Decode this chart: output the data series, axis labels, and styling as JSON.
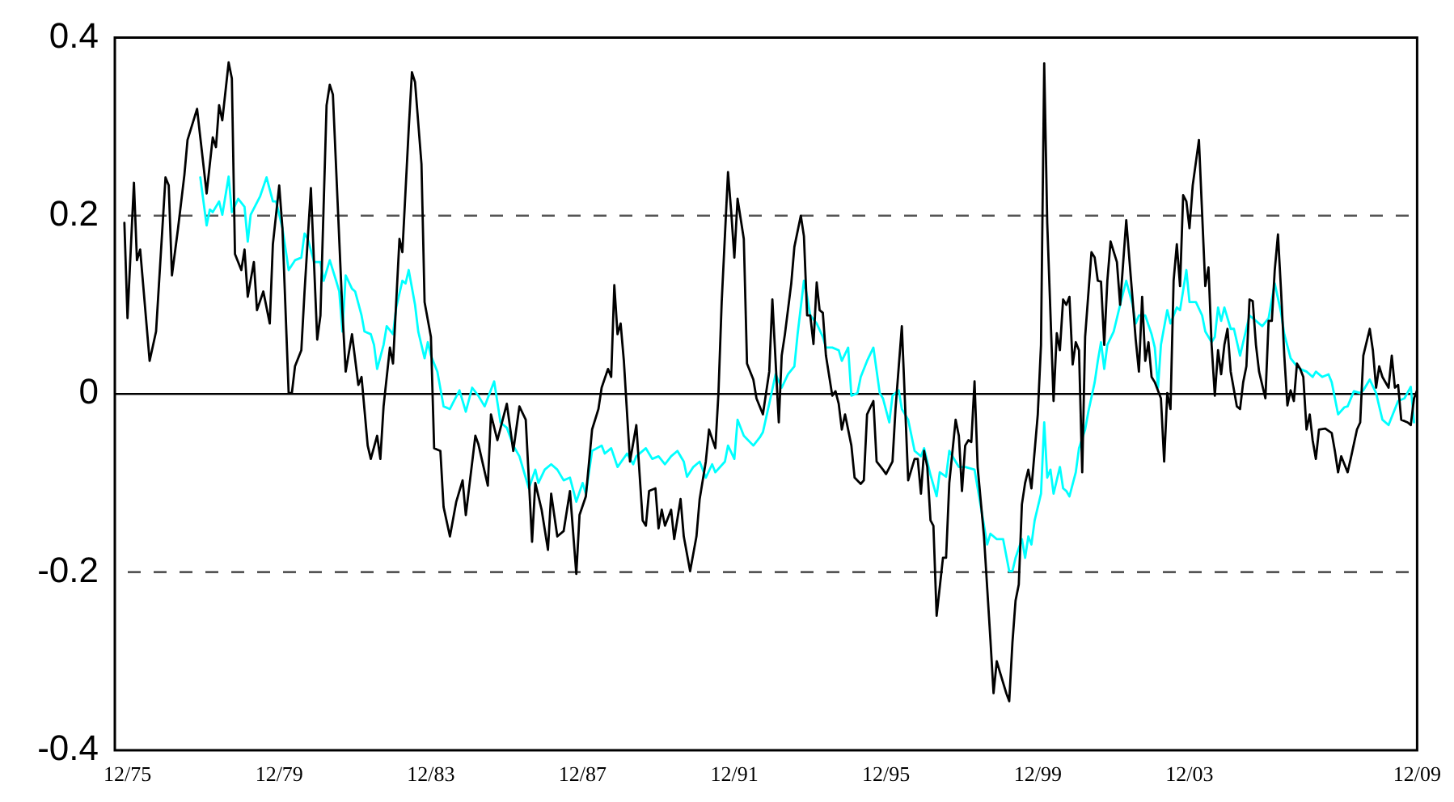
{
  "chart_data": {
    "type": "line",
    "xlim": [
      "1975-08",
      "2009-12"
    ],
    "xticks": [
      {
        "value": "1975-12",
        "label": "12/75"
      },
      {
        "value": "1979-12",
        "label": "12/79"
      },
      {
        "value": "1983-12",
        "label": "12/83"
      },
      {
        "value": "1987-12",
        "label": "12/87"
      },
      {
        "value": "1991-12",
        "label": "12/91"
      },
      {
        "value": "1995-12",
        "label": "12/95"
      },
      {
        "value": "1999-12",
        "label": "12/99"
      },
      {
        "value": "2003-12",
        "label": "12/03"
      },
      {
        "value": "2009-12",
        "label": "12/09"
      }
    ],
    "ylim": [
      -0.4,
      0.4
    ],
    "yticks": [
      -0.4,
      -0.2,
      0,
      0.2,
      0.4
    ],
    "ref_lines": [
      {
        "axis": "y",
        "value": 0.2,
        "color": "#555555",
        "line_style": "dashed"
      },
      {
        "axis": "y",
        "value": -0.2,
        "color": "#555555",
        "line_style": "dashed"
      },
      {
        "axis": "y",
        "value": 0,
        "color": "#000000",
        "line_style": "solid"
      }
    ],
    "series": [
      {
        "color": "#000000",
        "x": [
          "1975-11",
          "1975-12",
          "1976-02",
          "1976-03",
          "1976-04",
          "1976-07",
          "1976-09",
          "1976-12",
          "1977-01",
          "1977-02",
          "1977-04",
          "1977-06",
          "1977-07",
          "1977-10",
          "1978-01",
          "1978-03",
          "1978-04",
          "1978-05",
          "1978-06",
          "1978-08",
          "1978-09",
          "1978-10",
          "1978-12",
          "1979-01",
          "1979-02",
          "1979-04",
          "1979-05",
          "1979-07",
          "1979-09",
          "1979-10",
          "1979-12",
          "1980-01",
          "1980-03",
          "1980-04",
          "1980-05",
          "1980-07",
          "1980-08",
          "1980-10",
          "1980-12",
          "1981-01",
          "1981-03",
          "1981-04",
          "1981-05",
          "1981-08",
          "1981-09",
          "1981-11",
          "1982-01",
          "1982-02",
          "1982-04",
          "1982-05",
          "1982-07",
          "1982-08",
          "1982-09",
          "1982-11",
          "1982-12",
          "1983-02",
          "1983-03",
          "1983-05",
          "1983-06",
          "1983-07",
          "1983-09",
          "1983-10",
          "1983-12",
          "1984-01",
          "1984-03",
          "1984-04",
          "1984-06",
          "1984-08",
          "1984-10",
          "1984-11",
          "1985-02",
          "1985-03",
          "1985-06",
          "1985-07",
          "1985-09",
          "1985-12",
          "1986-02",
          "1986-04",
          "1986-06",
          "1986-08",
          "1986-09",
          "1986-11",
          "1987-01",
          "1987-02",
          "1987-04",
          "1987-06",
          "1987-08",
          "1987-10",
          "1987-11",
          "1988-01",
          "1988-03",
          "1988-05",
          "1988-06",
          "1988-08",
          "1988-09",
          "1988-10",
          "1988-11",
          "1988-12",
          "1989-01",
          "1989-03",
          "1989-05",
          "1989-07",
          "1989-08",
          "1989-09",
          "1989-11",
          "1989-12",
          "1990-01",
          "1990-02",
          "1990-04",
          "1990-05",
          "1990-07",
          "1990-08",
          "1990-10",
          "1990-12",
          "1991-01",
          "1991-03",
          "1991-04",
          "1991-06",
          "1991-07",
          "1991-08",
          "1991-10",
          "1991-11",
          "1991-12",
          "1992-01",
          "1992-03",
          "1992-04",
          "1992-06",
          "1992-07",
          "1992-09",
          "1992-11",
          "1992-12",
          "1993-02",
          "1993-03",
          "1993-04",
          "1993-06",
          "1993-07",
          "1993-09",
          "1993-10",
          "1993-11",
          "1993-12",
          "1994-01",
          "1994-02",
          "1994-03",
          "1994-04",
          "1994-05",
          "1994-07",
          "1994-08",
          "1994-09",
          "1994-10",
          "1994-11",
          "1995-01",
          "1995-02",
          "1995-04",
          "1995-05",
          "1995-06",
          "1995-08",
          "1995-09",
          "1995-11",
          "1995-12",
          "1996-02",
          "1996-03",
          "1996-05",
          "1996-07",
          "1996-09",
          "1996-10",
          "1996-11",
          "1996-12",
          "1997-01",
          "1997-02",
          "1997-03",
          "1997-04",
          "1997-06",
          "1997-07",
          "1997-08",
          "1997-10",
          "1997-11",
          "1997-12",
          "1998-01",
          "1998-02",
          "1998-03",
          "1998-04",
          "1998-05",
          "1998-07",
          "1998-09",
          "1998-10",
          "1998-11",
          "1998-12",
          "1999-02",
          "1999-03",
          "1999-04",
          "1999-05",
          "1999-06",
          "1999-07",
          "1999-08",
          "1999-09",
          "1999-10",
          "1999-12",
          "2000-01",
          "2000-02",
          "2000-03",
          "2000-05",
          "2000-06",
          "2000-07",
          "2000-08",
          "2000-09",
          "2000-10",
          "2000-11",
          "2000-12",
          "2001-01",
          "2001-02",
          "2001-03",
          "2001-05",
          "2001-06",
          "2001-07",
          "2001-08",
          "2001-09",
          "2001-10",
          "2001-11",
          "2002-01",
          "2002-02",
          "2002-03",
          "2002-04",
          "2002-06",
          "2002-07",
          "2002-08",
          "2002-09",
          "2002-10",
          "2002-11",
          "2002-12",
          "2003-01",
          "2003-03",
          "2003-04",
          "2003-05",
          "2003-06",
          "2003-07",
          "2003-08",
          "2003-09",
          "2003-10",
          "2003-11",
          "2003-12",
          "2004-01",
          "2004-03",
          "2004-05",
          "2004-06",
          "2004-07",
          "2004-08",
          "2004-09",
          "2004-10",
          "2004-11",
          "2004-12",
          "2005-01",
          "2005-03",
          "2005-04",
          "2005-05",
          "2005-06",
          "2005-07",
          "2005-08",
          "2005-09",
          "2005-10",
          "2005-12",
          "2006-01",
          "2006-02",
          "2006-03",
          "2006-04",
          "2006-05",
          "2006-06",
          "2006-07",
          "2006-08",
          "2006-09",
          "2006-10",
          "2006-11",
          "2006-12",
          "2007-01",
          "2007-02",
          "2007-03",
          "2007-04",
          "2007-05",
          "2007-07",
          "2007-09",
          "2007-10",
          "2007-11",
          "2007-12",
          "2008-02",
          "2008-03",
          "2008-05",
          "2008-06",
          "2008-07",
          "2008-09",
          "2008-10",
          "2008-11",
          "2008-12",
          "2009-01",
          "2009-03",
          "2009-04",
          "2009-05",
          "2009-06",
          "2009-07",
          "2009-09",
          "2009-10",
          "2009-11",
          "2009-12"
        ],
        "values": [
          0.192,
          0.085,
          0.237,
          0.15,
          0.162,
          0.037,
          0.07,
          0.243,
          0.234,
          0.133,
          0.186,
          0.246,
          0.285,
          0.32,
          0.225,
          0.288,
          0.277,
          0.324,
          0.307,
          0.372,
          0.354,
          0.157,
          0.139,
          0.162,
          0.109,
          0.148,
          0.094,
          0.115,
          0.079,
          0.168,
          0.234,
          0.186,
          0.001,
          0.001,
          0.031,
          0.049,
          0.115,
          0.231,
          0.061,
          0.088,
          0.324,
          0.347,
          0.336,
          0.091,
          0.025,
          0.067,
          0.01,
          0.019,
          -0.058,
          -0.073,
          -0.047,
          -0.073,
          -0.014,
          0.052,
          0.034,
          0.174,
          0.159,
          0.297,
          0.361,
          0.35,
          0.258,
          0.103,
          0.064,
          -0.061,
          -0.064,
          -0.127,
          -0.16,
          -0.121,
          -0.097,
          -0.136,
          -0.047,
          -0.056,
          -0.103,
          -0.023,
          -0.052,
          -0.011,
          -0.064,
          -0.014,
          -0.029,
          -0.166,
          -0.1,
          -0.13,
          -0.175,
          -0.112,
          -0.16,
          -0.154,
          -0.109,
          -0.202,
          -0.136,
          -0.115,
          -0.04,
          -0.017,
          0.007,
          0.028,
          0.019,
          0.122,
          0.067,
          0.079,
          0.037,
          -0.076,
          -0.035,
          -0.142,
          -0.148,
          -0.109,
          -0.106,
          -0.151,
          -0.13,
          -0.148,
          -0.13,
          -0.163,
          -0.118,
          -0.16,
          -0.199,
          -0.16,
          -0.118,
          -0.076,
          -0.04,
          -0.061,
          0.001,
          0.103,
          0.249,
          0.204,
          0.153,
          0.219,
          0.174,
          0.034,
          0.016,
          -0.005,
          -0.023,
          0.025,
          0.106,
          -0.032,
          0.043,
          0.067,
          0.124,
          0.165,
          0.2,
          0.177,
          0.088,
          0.088,
          0.056,
          0.125,
          0.094,
          0.091,
          0.043,
          -0.002,
          0.003,
          -0.011,
          -0.04,
          -0.023,
          -0.058,
          -0.094,
          -0.101,
          -0.097,
          -0.023,
          -0.008,
          -0.076,
          -0.085,
          -0.09,
          -0.076,
          -0.017,
          0.076,
          -0.097,
          -0.073,
          -0.073,
          -0.112,
          -0.064,
          -0.082,
          -0.142,
          -0.148,
          -0.249,
          -0.184,
          -0.184,
          -0.1,
          -0.029,
          -0.047,
          -0.109,
          -0.058,
          -0.052,
          -0.054,
          0.014,
          -0.082,
          -0.16,
          -0.276,
          -0.336,
          -0.3,
          -0.312,
          -0.336,
          -0.345,
          -0.279,
          -0.232,
          -0.214,
          -0.124,
          -0.1,
          -0.085,
          -0.106,
          -0.023,
          0.055,
          0.371,
          0.192,
          -0.008,
          0.068,
          0.049,
          0.106,
          0.1,
          0.109,
          0.033,
          0.058,
          0.049,
          -0.088,
          0.064,
          0.159,
          0.153,
          0.127,
          0.126,
          0.055,
          0.127,
          0.171,
          0.148,
          0.1,
          0.145,
          0.195,
          0.106,
          0.061,
          0.025,
          0.109,
          0.037,
          0.058,
          0.019,
          0.013,
          -0.005,
          -0.076,
          0.001,
          -0.017,
          0.127,
          0.168,
          0.121,
          0.223,
          0.216,
          0.186,
          0.234,
          0.285,
          0.121,
          0.142,
          0.055,
          -0.002,
          0.049,
          0.022,
          0.055,
          0.073,
          0.025,
          -0.014,
          -0.017,
          0.013,
          0.031,
          0.106,
          0.104,
          0.055,
          0.025,
          -0.005,
          0.082,
          0.082,
          0.139,
          0.179,
          0.115,
          0.043,
          -0.013,
          0.004,
          -0.008,
          0.034,
          0.028,
          0.019,
          -0.04,
          -0.023,
          -0.052,
          -0.073,
          -0.04,
          -0.039,
          -0.044,
          -0.064,
          -0.088,
          -0.07,
          -0.088,
          -0.073,
          -0.04,
          -0.032,
          0.043,
          0.073,
          0.049,
          0.007,
          0.031,
          0.019,
          0.007,
          0.043,
          0.007,
          0.01,
          -0.029,
          -0.032,
          -0.035,
          -0.005,
          0.004
        ]
      },
      {
        "color": "#00ffff",
        "x": [
          "1977-11",
          "1978-01",
          "1978-02",
          "1978-03",
          "1978-05",
          "1978-06",
          "1978-08",
          "1978-09",
          "1978-11",
          "1979-01",
          "1979-02",
          "1979-03",
          "1979-06",
          "1979-08",
          "1979-10",
          "1979-11",
          "1980-01",
          "1980-03",
          "1980-05",
          "1980-07",
          "1980-08",
          "1980-09",
          "1980-11",
          "1981-01",
          "1981-02",
          "1981-04",
          "1981-06",
          "1981-07",
          "1981-08",
          "1981-09",
          "1981-11",
          "1981-12",
          "1982-02",
          "1982-03",
          "1982-05",
          "1982-06",
          "1982-07",
          "1982-09",
          "1982-10",
          "1982-12",
          "1983-01",
          "1983-03",
          "1983-04",
          "1983-05",
          "1983-07",
          "1983-08",
          "1983-10",
          "1983-11",
          "1983-12",
          "1984-02",
          "1984-04",
          "1984-06",
          "1984-07",
          "1984-09",
          "1984-11",
          "1985-01",
          "1985-03",
          "1985-05",
          "1985-08",
          "1985-10",
          "1985-12",
          "1986-02",
          "1986-04",
          "1986-07",
          "1986-09",
          "1986-10",
          "1986-12",
          "1987-02",
          "1987-04",
          "1987-06",
          "1987-08",
          "1987-10",
          "1987-12",
          "1988-01",
          "1988-03",
          "1988-06",
          "1988-07",
          "1988-09",
          "1988-11",
          "1989-02",
          "1989-04",
          "1989-05",
          "1989-08",
          "1989-10",
          "1989-12",
          "1990-02",
          "1990-04",
          "1990-06",
          "1990-08",
          "1990-09",
          "1990-11",
          "1991-01",
          "1991-03",
          "1991-05",
          "1991-06",
          "1991-09",
          "1991-10",
          "1991-12",
          "1992-01",
          "1992-03",
          "1992-06",
          "1992-08",
          "1992-09",
          "1992-11",
          "1993-01",
          "1993-03",
          "1993-05",
          "1993-07",
          "1993-08",
          "1993-10",
          "1993-11",
          "1993-12",
          "1994-02",
          "1994-04",
          "1994-05",
          "1994-07",
          "1994-09",
          "1994-10",
          "1994-12",
          "1995-01",
          "1995-03",
          "1995-04",
          "1995-06",
          "1995-08",
          "1995-10",
          "1995-11",
          "1996-01",
          "1996-02",
          "1996-04",
          "1996-05",
          "1996-07",
          "1996-09",
          "1996-11",
          "1996-12",
          "1997-02",
          "1997-04",
          "1997-05",
          "1997-07",
          "1997-08",
          "1997-10",
          "1997-11",
          "1998-01",
          "1998-04",
          "1998-06",
          "1998-08",
          "1998-09",
          "1998-11",
          "1999-01",
          "1999-03",
          "1999-04",
          "1999-05",
          "1999-07",
          "1999-08",
          "1999-09",
          "1999-10",
          "1999-11",
          "2000-01",
          "2000-02",
          "2000-03",
          "2000-04",
          "2000-05",
          "2000-07",
          "2000-08",
          "2000-09",
          "2000-10",
          "2000-12",
          "2001-01",
          "2001-03",
          "2001-04",
          "2001-06",
          "2001-07",
          "2001-08",
          "2001-09",
          "2001-10",
          "2001-12",
          "2002-02",
          "2002-04",
          "2002-06",
          "2002-07",
          "2002-08",
          "2002-10",
          "2002-12",
          "2003-01",
          "2003-02",
          "2003-03",
          "2003-05",
          "2003-06",
          "2003-08",
          "2003-09",
          "2003-11",
          "2003-12",
          "2004-02",
          "2004-04",
          "2004-05",
          "2004-07",
          "2004-08",
          "2004-09",
          "2004-10",
          "2004-11",
          "2005-01",
          "2005-02",
          "2005-04",
          "2005-05",
          "2005-07",
          "2005-09",
          "2005-11",
          "2006-01",
          "2006-02",
          "2006-03",
          "2006-05",
          "2006-06",
          "2006-08",
          "2006-10",
          "2006-11",
          "2007-01",
          "2007-03",
          "2007-04",
          "2007-06",
          "2007-08",
          "2007-09",
          "2007-11",
          "2008-01",
          "2008-02",
          "2008-04",
          "2008-06",
          "2008-07",
          "2008-09",
          "2008-11",
          "2008-12",
          "2009-01",
          "2009-03",
          "2009-05",
          "2009-06",
          "2009-08",
          "2009-10",
          "2009-11"
        ],
        "values": [
          0.243,
          0.189,
          0.207,
          0.204,
          0.216,
          0.201,
          0.244,
          0.204,
          0.219,
          0.21,
          0.171,
          0.201,
          0.222,
          0.243,
          0.216,
          0.216,
          0.186,
          0.139,
          0.15,
          0.153,
          0.18,
          0.174,
          0.148,
          0.148,
          0.127,
          0.15,
          0.127,
          0.115,
          0.07,
          0.133,
          0.118,
          0.115,
          0.088,
          0.07,
          0.067,
          0.055,
          0.028,
          0.055,
          0.076,
          0.067,
          0.097,
          0.127,
          0.124,
          0.139,
          0.1,
          0.07,
          0.04,
          0.058,
          0.043,
          0.025,
          -0.014,
          -0.017,
          -0.01,
          0.004,
          -0.02,
          0.007,
          -0.002,
          -0.014,
          0.014,
          -0.032,
          -0.038,
          -0.058,
          -0.07,
          -0.106,
          -0.085,
          -0.1,
          -0.085,
          -0.079,
          -0.085,
          -0.097,
          -0.094,
          -0.121,
          -0.1,
          -0.112,
          -0.064,
          -0.058,
          -0.067,
          -0.061,
          -0.082,
          -0.067,
          -0.079,
          -0.07,
          -0.061,
          -0.073,
          -0.07,
          -0.079,
          -0.07,
          -0.064,
          -0.076,
          -0.093,
          -0.082,
          -0.076,
          -0.094,
          -0.079,
          -0.088,
          -0.076,
          -0.058,
          -0.073,
          -0.029,
          -0.047,
          -0.058,
          -0.049,
          -0.043,
          -0.011,
          0.022,
          0.007,
          0.022,
          0.031,
          0.067,
          0.127,
          0.109,
          0.088,
          0.079,
          0.064,
          0.052,
          0.052,
          0.049,
          0.037,
          0.052,
          -0.002,
          0.001,
          0.019,
          0.037,
          0.052,
          0.001,
          -0.005,
          -0.032,
          -0.002,
          0.004,
          -0.017,
          -0.029,
          -0.064,
          -0.07,
          -0.061,
          -0.091,
          -0.115,
          -0.088,
          -0.093,
          -0.064,
          -0.076,
          -0.082,
          -0.082,
          -0.085,
          -0.127,
          -0.169,
          -0.157,
          -0.163,
          -0.163,
          -0.199,
          -0.199,
          -0.184,
          -0.163,
          -0.184,
          -0.16,
          -0.169,
          -0.142,
          -0.112,
          -0.032,
          -0.094,
          -0.085,
          -0.112,
          -0.082,
          -0.106,
          -0.109,
          -0.115,
          -0.088,
          -0.061,
          -0.04,
          -0.02,
          0.013,
          0.037,
          0.058,
          0.028,
          0.055,
          0.07,
          0.1,
          0.127,
          0.1,
          0.079,
          0.088,
          0.088,
          0.067,
          0.052,
          0.007,
          0.055,
          0.094,
          0.079,
          0.097,
          0.094,
          0.139,
          0.103,
          0.103,
          0.088,
          0.07,
          0.058,
          0.064,
          0.097,
          0.082,
          0.097,
          0.073,
          0.073,
          0.043,
          0.058,
          0.088,
          0.082,
          0.076,
          0.085,
          0.106,
          0.124,
          0.091,
          0.067,
          0.04,
          0.031,
          0.028,
          0.025,
          0.019,
          0.025,
          0.019,
          0.022,
          0.013,
          -0.023,
          -0.015,
          -0.014,
          0.003,
          0.001,
          0.004,
          0.016,
          0.001,
          -0.014,
          -0.029,
          -0.035,
          -0.017,
          -0.008,
          -0.005,
          0.008,
          -0.032
        ]
      }
    ]
  }
}
